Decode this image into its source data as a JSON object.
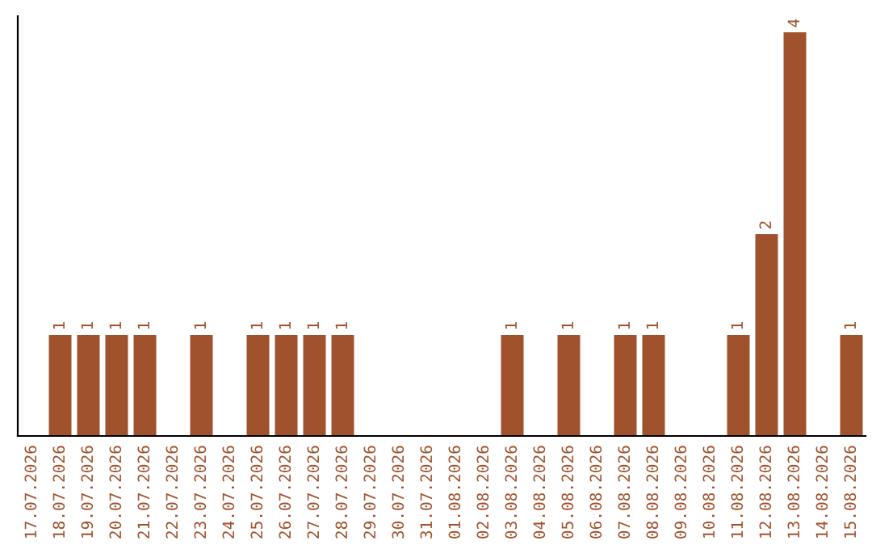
{
  "chart_data": {
    "type": "bar",
    "categories": [
      "17.07.2026",
      "18.07.2026",
      "19.07.2026",
      "20.07.2026",
      "21.07.2026",
      "22.07.2026",
      "23.07.2026",
      "24.07.2026",
      "25.07.2026",
      "26.07.2026",
      "27.07.2026",
      "28.07.2026",
      "29.07.2026",
      "30.07.2026",
      "31.07.2026",
      "01.08.2026",
      "02.08.2026",
      "03.08.2026",
      "04.08.2026",
      "05.08.2026",
      "06.08.2026",
      "07.08.2026",
      "08.08.2026",
      "09.08.2026",
      "10.08.2026",
      "11.08.2026",
      "12.08.2026",
      "13.08.2026",
      "14.08.2026",
      "15.08.2026"
    ],
    "values": [
      0,
      1,
      1,
      1,
      1,
      0,
      1,
      0,
      1,
      1,
      1,
      1,
      0,
      0,
      0,
      0,
      0,
      1,
      0,
      1,
      0,
      1,
      1,
      0,
      0,
      1,
      2,
      4,
      0,
      1
    ],
    "value_labels": [
      null,
      "1",
      "1",
      "1",
      "1",
      null,
      "1",
      null,
      "1",
      "1",
      "1",
      "1",
      null,
      null,
      null,
      null,
      null,
      "1",
      null,
      "1",
      null,
      "1",
      "1",
      null,
      null,
      "1",
      "2",
      "4",
      null,
      "1"
    ],
    "color": "#a0522d",
    "ylim": [
      0,
      4.16
    ],
    "tick_labels": "x",
    "grid": false
  }
}
